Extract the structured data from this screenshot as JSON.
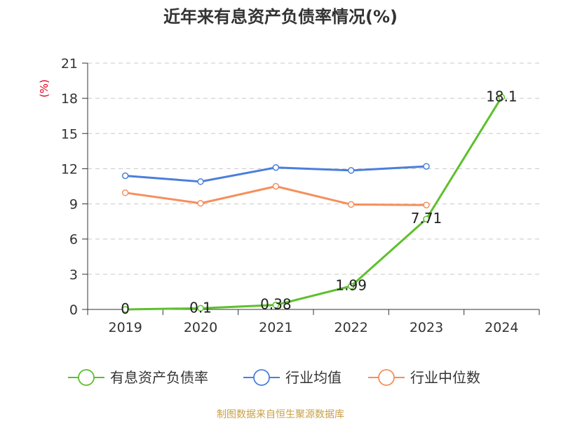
{
  "colors": {
    "source": "#c8a048",
    "unit": "#e0001b",
    "axis": "#333333",
    "grid": "#c8c8c8"
  },
  "chart_data": {
    "type": "line",
    "title": "近年来有息资产负债率情况(%)",
    "ylabel": "(%)",
    "xlabel": "",
    "categories": [
      "2019",
      "2020",
      "2021",
      "2022",
      "2023",
      "2024"
    ],
    "ylim": [
      0,
      21
    ],
    "yticks": [
      0,
      3,
      6,
      9,
      12,
      15,
      18,
      21
    ],
    "grid": true,
    "legend_position": "bottom",
    "series": [
      {
        "name": "有息资产负债率",
        "color": "#5dc02c",
        "values": [
          0,
          0.1,
          0.38,
          1.99,
          7.71,
          18.1
        ],
        "labels": [
          "0",
          "0.1",
          "0.38",
          "1.99",
          "7.71",
          "18.1"
        ],
        "show_labels": true,
        "line_width": 3
      },
      {
        "name": "行业均值",
        "color": "#4a7fdb",
        "values": [
          11.4,
          10.9,
          12.1,
          11.85,
          12.2,
          null
        ],
        "show_labels": false,
        "line_width": 3
      },
      {
        "name": "行业中位数",
        "color": "#f58f5c",
        "values": [
          9.95,
          9.05,
          10.5,
          8.95,
          8.9,
          null
        ],
        "show_labels": false,
        "line_width": 3
      }
    ]
  },
  "source_text": "制图数据来自恒生聚源数据库"
}
